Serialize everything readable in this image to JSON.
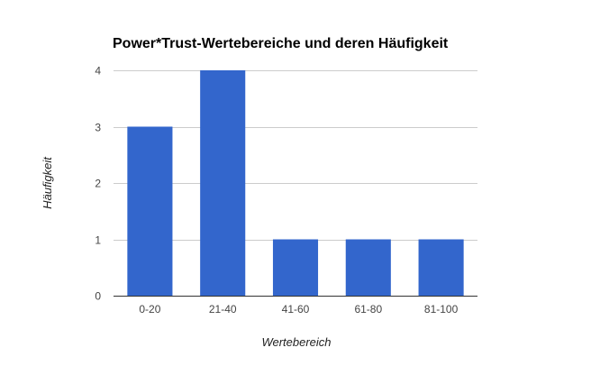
{
  "chart_data": {
    "type": "bar",
    "title": "Power*Trust-Wertebereiche und deren Häufigkeit",
    "xlabel": "Wertebereich",
    "ylabel": "Häufigkeit",
    "categories": [
      "0-20",
      "21-40",
      "41-60",
      "61-80",
      "81-100"
    ],
    "values": [
      3,
      4,
      1,
      1,
      1
    ],
    "ylim": [
      0,
      4
    ],
    "yticks": [
      0,
      1,
      2,
      3,
      4
    ],
    "grid": true,
    "legend": "none",
    "bar_color": "#3366cc"
  }
}
